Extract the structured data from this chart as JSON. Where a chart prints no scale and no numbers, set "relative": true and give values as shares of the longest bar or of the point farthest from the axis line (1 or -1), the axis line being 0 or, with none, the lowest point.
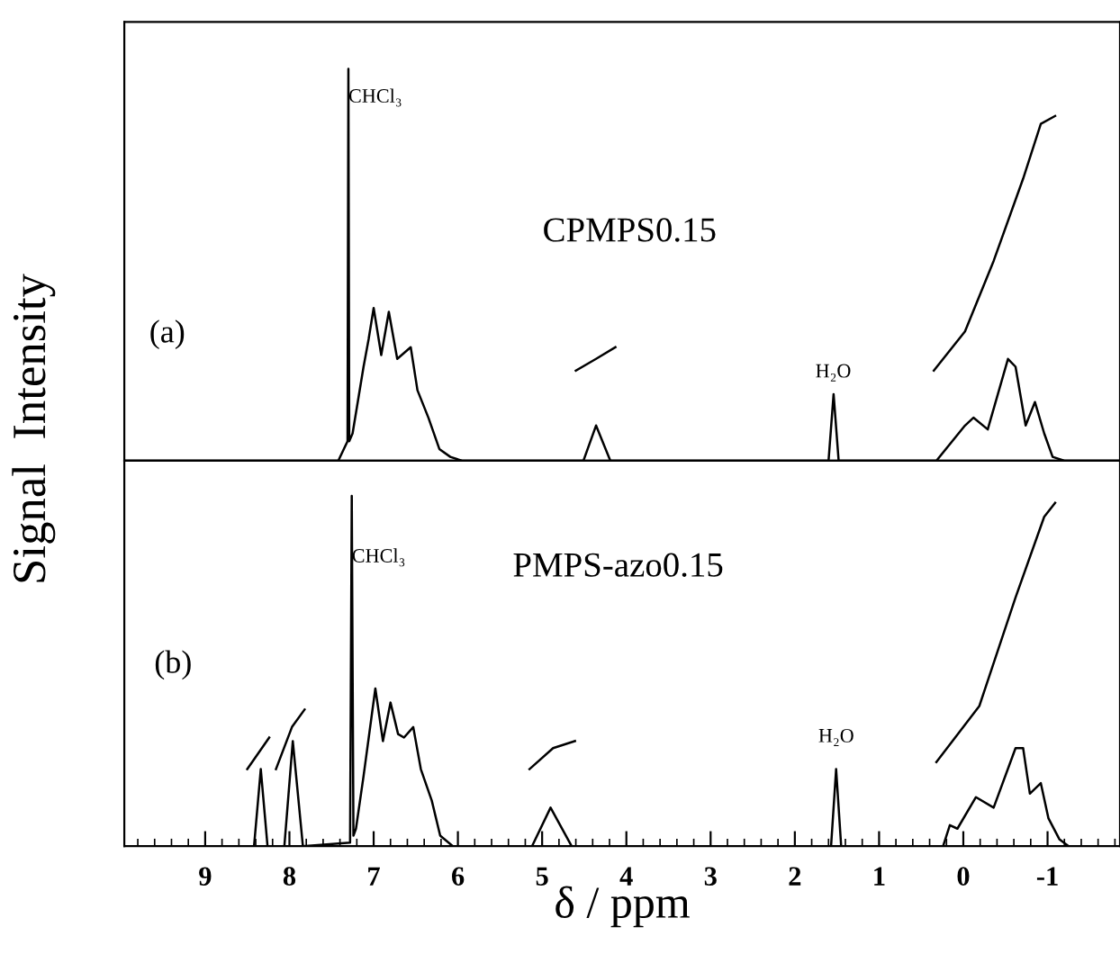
{
  "chart_data": [
    {
      "type": "line",
      "relative": true,
      "ylabel": "Signal  Intensity",
      "xlim": [
        9.96,
        -1.86
      ],
      "tick_labels": false,
      "annotations": [
        "(a)",
        "CPMPS0.15",
        {
          "text": "CHCl₃",
          "x": 7.3,
          "y": 0.95
        },
        "H₂O"
      ],
      "series": [
        {
          "color": "#000000",
          "x": [
            9.96,
            7.42,
            7.31,
            7.3,
            7.29,
            7.25,
            7.12,
            7.06,
            7.0,
            6.91,
            6.82,
            6.72,
            6.56,
            6.48,
            6.35,
            6.22,
            6.09,
            5.95,
            4.51,
            4.36,
            4.19,
            1.6,
            1.54,
            1.48,
            0.32,
            -0.02,
            -0.12,
            -0.29,
            -0.53,
            -0.62,
            -0.74,
            -0.85,
            -0.96,
            -1.06,
            -1.2,
            -1.86
          ],
          "values": [
            0,
            0,
            0.05,
            1,
            0.05,
            0.07,
            0.24,
            0.31,
            0.39,
            0.27,
            0.38,
            0.26,
            0.29,
            0.18,
            0.11,
            0.03,
            0.01,
            0,
            0,
            0.09,
            0,
            0,
            0.17,
            0,
            0,
            0.09,
            0.11,
            0.08,
            0.26,
            0.24,
            0.09,
            0.15,
            0.07,
            0.01,
            0,
            0
          ]
        },
        {
          "color": "#000000",
          "x": [
            4.6,
            4.36,
            4.13
          ],
          "values": [
            0.23,
            0.26,
            0.29
          ]
        },
        {
          "color": "#000000",
          "x": [
            0.35,
            -0.02,
            -0.36,
            -0.71,
            -0.92,
            -1.09
          ],
          "values": [
            0.23,
            0.33,
            0.51,
            0.72,
            0.86,
            0.88
          ]
        }
      ]
    },
    {
      "type": "line",
      "relative": true,
      "xlabel": "δ / ppm",
      "xlim": [
        9.96,
        -1.86
      ],
      "xticks": [
        9,
        8,
        7,
        6,
        5,
        4,
        3,
        2,
        1,
        0,
        -1
      ],
      "tick_labels": "x",
      "annotations": [
        "(b)",
        "PMPS-azo0.15",
        {
          "text": "CHCl₃",
          "x": 7.26,
          "y": 0.85
        },
        "H₂O"
      ],
      "series": [
        {
          "color": "#000000",
          "x": [
            9.96,
            8.42,
            8.34,
            8.26,
            8.06,
            7.96,
            7.84,
            7.28,
            7.26,
            7.24,
            7.21,
            7.12,
            6.98,
            6.89,
            6.8,
            6.71,
            6.64,
            6.53,
            6.44,
            6.31,
            6.21,
            6.06,
            5.12,
            4.9,
            4.65,
            1.57,
            1.51,
            1.45,
            0.24,
            0.16,
            0.07,
            -0.15,
            -0.36,
            -0.62,
            -0.71,
            -0.79,
            -0.92,
            -1.01,
            -1.14,
            -1.25,
            -1.86
          ],
          "values": [
            0,
            0,
            0.22,
            0,
            0,
            0.3,
            0,
            0.01,
            1,
            0.03,
            0.05,
            0.2,
            0.45,
            0.3,
            0.41,
            0.32,
            0.31,
            0.34,
            0.22,
            0.13,
            0.03,
            0,
            0,
            0.11,
            0,
            0,
            0.22,
            0,
            0,
            0.06,
            0.05,
            0.14,
            0.11,
            0.28,
            0.28,
            0.15,
            0.18,
            0.08,
            0.02,
            0,
            0
          ]
        },
        {
          "color": "#000000",
          "x": [
            8.5,
            8.24
          ],
          "values": [
            0.22,
            0.31
          ]
        },
        {
          "color": "#000000",
          "x": [
            8.16,
            7.97,
            7.82
          ],
          "values": [
            0.22,
            0.34,
            0.39
          ]
        },
        {
          "color": "#000000",
          "x": [
            5.15,
            4.87,
            4.61
          ],
          "values": [
            0.22,
            0.28,
            0.3
          ]
        },
        {
          "color": "#000000",
          "x": [
            0.32,
            -0.19,
            -0.62,
            -0.96,
            -1.09
          ],
          "values": [
            0.24,
            0.4,
            0.71,
            0.94,
            0.98
          ]
        }
      ]
    }
  ]
}
